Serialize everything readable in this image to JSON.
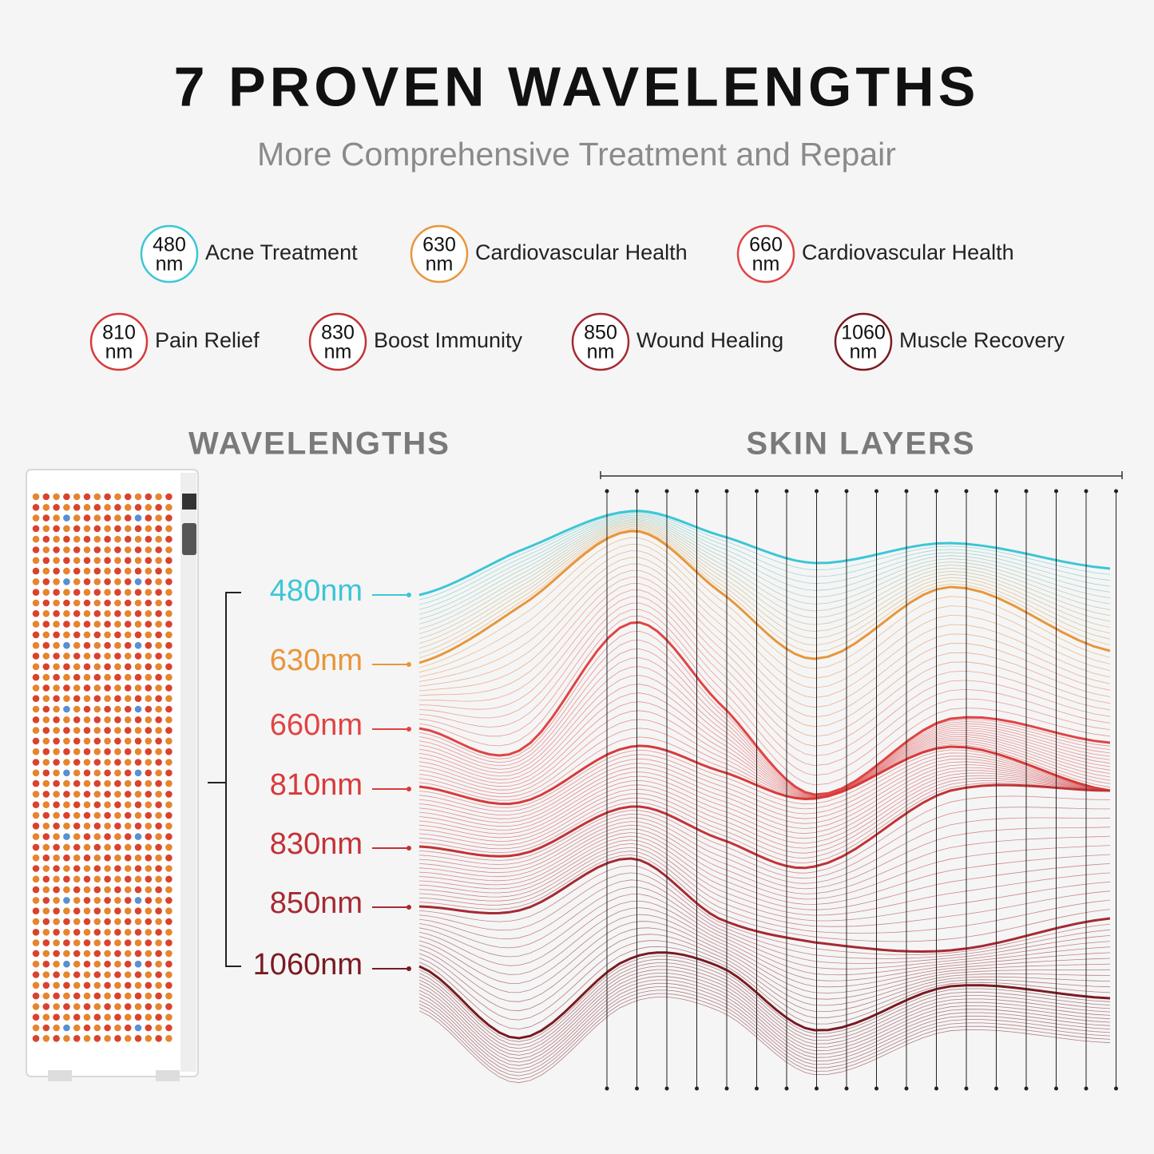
{
  "header": {
    "title": "7 PROVEN WAVELENGTHS",
    "subtitle": "More Comprehensive Treatment and Repair"
  },
  "benefits": [
    {
      "wavelength": "480",
      "unit": "nm",
      "label": "Acne Treatment"
    },
    {
      "wavelength": "630",
      "unit": "nm",
      "label": "Cardiovascular Health"
    },
    {
      "wavelength": "660",
      "unit": "nm",
      "label": "Cardiovascular Health"
    },
    {
      "wavelength": "810",
      "unit": "nm",
      "label": "Pain Relief"
    },
    {
      "wavelength": "830",
      "unit": "nm",
      "label": "Boost Immunity"
    },
    {
      "wavelength": "850",
      "unit": "nm",
      "label": "Wound Healing"
    },
    {
      "wavelength": "1060",
      "unit": "nm",
      "label": "Muscle Recovery"
    }
  ],
  "sections": {
    "wavelengths": "WAVELENGTHS",
    "skin_layers": "SKIN LAYERS"
  },
  "wavelength_labels": [
    "480nm",
    "630nm",
    "660nm",
    "810nm",
    "830nm",
    "850nm",
    "1060nm"
  ]
}
